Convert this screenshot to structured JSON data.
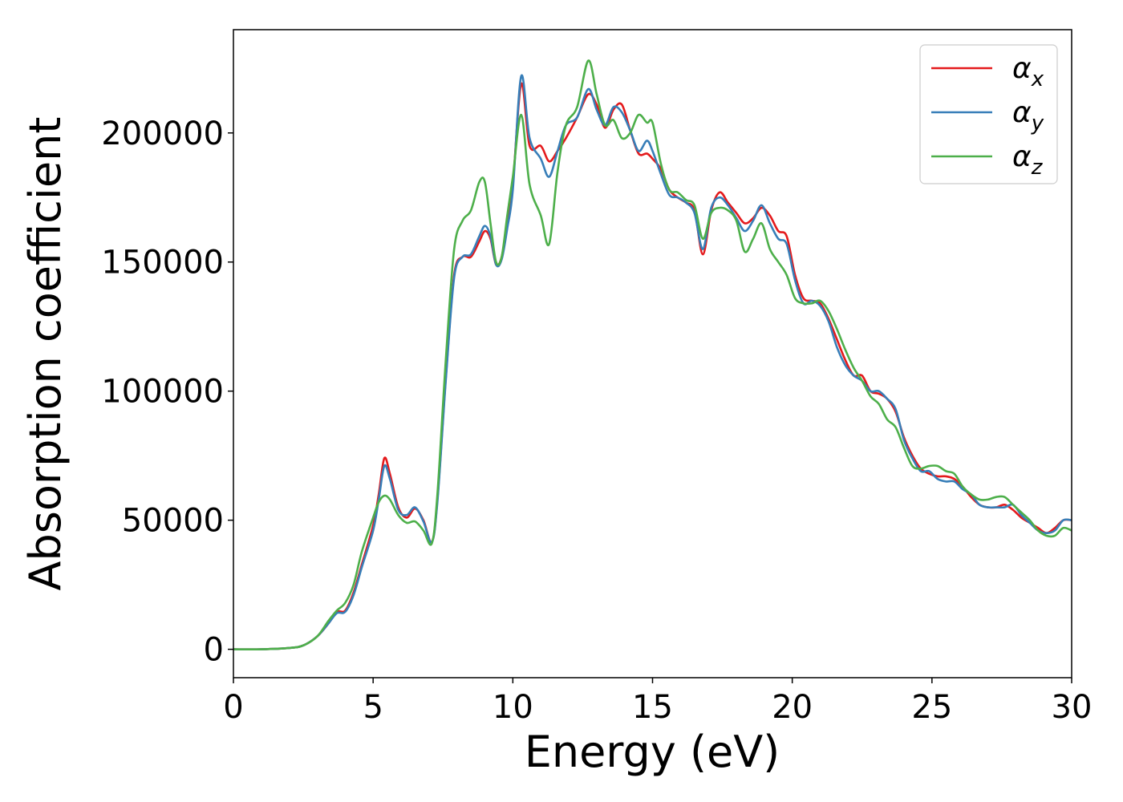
{
  "chart_data": {
    "type": "line",
    "title": "",
    "xlabel": "Energy (eV)",
    "ylabel": "Absorption coefficient",
    "xlim": [
      0,
      30
    ],
    "ylim": [
      -11000,
      240000
    ],
    "xticks": [
      0,
      5,
      10,
      15,
      20,
      25,
      30
    ],
    "yticks": [
      0,
      50000,
      100000,
      150000,
      200000
    ],
    "grid": false,
    "legend_position": "top-right",
    "series": [
      {
        "name": "α_x",
        "symbol": "α",
        "subscript": "x",
        "color": "#e41a1c",
        "x": [
          0,
          1,
          2,
          2.5,
          3,
          3.4,
          3.7,
          4,
          4.3,
          4.6,
          5,
          5.2,
          5.4,
          5.6,
          5.9,
          6.2,
          6.5,
          6.8,
          7.1,
          7.3,
          7.6,
          7.9,
          8.2,
          8.5,
          8.8,
          9.0,
          9.2,
          9.4,
          9.6,
          9.8,
          10.0,
          10.3,
          10.6,
          11.0,
          11.3,
          11.6,
          11.9,
          12.3,
          12.7,
          13.0,
          13.3,
          13.6,
          13.9,
          14.2,
          14.5,
          14.8,
          15.0,
          15.3,
          15.6,
          15.9,
          16.2,
          16.5,
          16.8,
          17.1,
          17.4,
          17.7,
          18.0,
          18.3,
          18.6,
          18.9,
          19.2,
          19.5,
          19.8,
          20.1,
          20.4,
          20.7,
          21.0,
          21.3,
          21.6,
          21.9,
          22.2,
          22.5,
          22.8,
          23.1,
          23.4,
          23.7,
          24.0,
          24.3,
          24.6,
          24.9,
          25.2,
          25.5,
          25.8,
          26.1,
          26.4,
          26.7,
          27.0,
          27.3,
          27.6,
          27.9,
          28.2,
          28.5,
          28.8,
          29.1,
          29.4,
          29.7,
          30
        ],
        "y": [
          0,
          0,
          500,
          1500,
          5000,
          10000,
          14500,
          15000,
          22000,
          33000,
          48000,
          60000,
          74000,
          68000,
          55000,
          51000,
          54500,
          50000,
          41500,
          58000,
          105000,
          145000,
          152000,
          152000,
          158000,
          162000,
          159000,
          149000,
          152000,
          165000,
          180000,
          219000,
          195000,
          195000,
          189000,
          193000,
          198000,
          206000,
          215000,
          211000,
          202000,
          209000,
          211000,
          201000,
          192000,
          192000,
          190000,
          186000,
          178000,
          175000,
          173000,
          170000,
          153000,
          170000,
          177000,
          173000,
          169000,
          165000,
          167000,
          171000,
          168000,
          162000,
          160000,
          145000,
          136000,
          135000,
          134000,
          128000,
          120000,
          112000,
          106000,
          106000,
          100000,
          99000,
          97000,
          92000,
          82000,
          75000,
          70000,
          68000,
          67000,
          67000,
          66000,
          63000,
          59000,
          56000,
          55000,
          55000,
          56000,
          54000,
          51000,
          49000,
          47000,
          45000,
          47000,
          50000,
          50000
        ]
      },
      {
        "name": "α_y",
        "symbol": "α",
        "subscript": "y",
        "color": "#377eb8",
        "x": [
          0,
          1,
          2,
          2.5,
          3,
          3.4,
          3.7,
          4,
          4.3,
          4.6,
          5,
          5.2,
          5.4,
          5.6,
          5.9,
          6.2,
          6.5,
          6.8,
          7.1,
          7.3,
          7.6,
          7.9,
          8.2,
          8.5,
          8.8,
          9.0,
          9.2,
          9.4,
          9.6,
          9.8,
          10.0,
          10.3,
          10.6,
          11.0,
          11.3,
          11.6,
          11.9,
          12.3,
          12.7,
          13.0,
          13.3,
          13.6,
          13.9,
          14.2,
          14.5,
          14.8,
          15.0,
          15.3,
          15.6,
          15.9,
          16.2,
          16.5,
          16.8,
          17.1,
          17.4,
          17.7,
          18.0,
          18.3,
          18.6,
          18.9,
          19.2,
          19.5,
          19.8,
          20.1,
          20.4,
          20.7,
          21.0,
          21.3,
          21.6,
          21.9,
          22.2,
          22.5,
          22.8,
          23.1,
          23.4,
          23.7,
          24.0,
          24.3,
          24.6,
          24.9,
          25.2,
          25.5,
          25.8,
          26.1,
          26.4,
          26.7,
          27.0,
          27.3,
          27.6,
          27.9,
          28.2,
          28.5,
          28.8,
          29.1,
          29.4,
          29.7,
          30
        ],
        "y": [
          0,
          0,
          500,
          1500,
          5000,
          10000,
          14000,
          14500,
          21000,
          32000,
          46000,
          58000,
          71000,
          66000,
          54000,
          52000,
          55000,
          49500,
          41500,
          57000,
          104000,
          144000,
          152000,
          153000,
          160000,
          164000,
          160000,
          149000,
          151000,
          163000,
          178000,
          222000,
          198000,
          190000,
          183000,
          193000,
          203000,
          206000,
          217000,
          209000,
          203000,
          210000,
          208000,
          201000,
          193000,
          197000,
          193000,
          184000,
          176000,
          175000,
          173000,
          169000,
          155000,
          171000,
          175000,
          172000,
          167000,
          162000,
          166000,
          172000,
          165000,
          159000,
          157000,
          143000,
          134000,
          135000,
          133000,
          127000,
          117000,
          110000,
          106000,
          104000,
          100000,
          100000,
          97000,
          93000,
          81000,
          74000,
          69000,
          69000,
          66000,
          65000,
          65000,
          62000,
          60000,
          56000,
          55000,
          55000,
          55000,
          56000,
          52000,
          49000,
          46000,
          45000,
          46000,
          50000,
          50000
        ]
      },
      {
        "name": "α_z",
        "symbol": "α",
        "subscript": "z",
        "color": "#4daf4a",
        "x": [
          0,
          1,
          2,
          2.5,
          3,
          3.4,
          3.7,
          4,
          4.3,
          4.6,
          5,
          5.2,
          5.4,
          5.6,
          5.9,
          6.2,
          6.5,
          6.8,
          7.1,
          7.3,
          7.6,
          7.9,
          8.2,
          8.5,
          8.8,
          9.0,
          9.2,
          9.4,
          9.6,
          9.8,
          10.0,
          10.3,
          10.6,
          11.0,
          11.3,
          11.6,
          11.9,
          12.3,
          12.7,
          13.0,
          13.3,
          13.6,
          13.9,
          14.2,
          14.5,
          14.8,
          15.0,
          15.3,
          15.6,
          15.9,
          16.2,
          16.5,
          16.8,
          17.1,
          17.4,
          17.7,
          18.0,
          18.3,
          18.6,
          18.9,
          19.2,
          19.5,
          19.8,
          20.1,
          20.4,
          20.7,
          21.0,
          21.3,
          21.6,
          21.9,
          22.2,
          22.5,
          22.8,
          23.1,
          23.4,
          23.7,
          24.0,
          24.3,
          24.6,
          24.9,
          25.2,
          25.5,
          25.8,
          26.1,
          26.4,
          26.7,
          27.0,
          27.3,
          27.6,
          27.9,
          28.2,
          28.5,
          28.8,
          29.1,
          29.4,
          29.7,
          30
        ],
        "y": [
          0,
          0,
          500,
          1500,
          5000,
          11000,
          15000,
          18000,
          25000,
          38000,
          51000,
          57000,
          59500,
          58000,
          52000,
          49000,
          49500,
          46000,
          41000,
          60000,
          112000,
          155000,
          166000,
          170000,
          181000,
          181000,
          165000,
          150000,
          152000,
          168000,
          183000,
          207000,
          180000,
          168000,
          157000,
          185000,
          203000,
          210000,
          228000,
          215000,
          203000,
          205000,
          198000,
          200000,
          207000,
          204000,
          204000,
          188000,
          178000,
          177000,
          174000,
          172000,
          159000,
          169000,
          171000,
          170000,
          166000,
          154000,
          159000,
          165000,
          155000,
          150000,
          145000,
          136000,
          134000,
          134000,
          135000,
          131000,
          124000,
          116000,
          109000,
          104000,
          98000,
          95000,
          89000,
          86000,
          78000,
          71000,
          70000,
          71000,
          71000,
          69000,
          68000,
          63000,
          60000,
          58000,
          58000,
          59000,
          59000,
          56000,
          53000,
          50000,
          46000,
          44000,
          44000,
          47000,
          46000
        ]
      }
    ]
  }
}
